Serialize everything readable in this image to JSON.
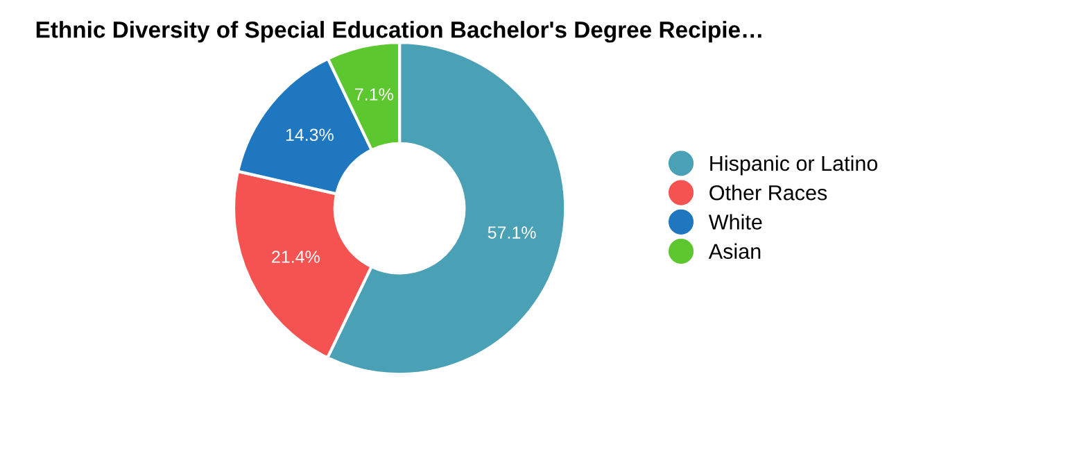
{
  "chart_data": {
    "type": "donut",
    "title": "Ethnic Diversity of Special Education Bachelor's Degree Recipie…",
    "categories": [
      "Hispanic or Latino",
      "Other Races",
      "White",
      "Asian"
    ],
    "values": [
      57.1,
      21.4,
      14.3,
      7.1
    ],
    "value_labels": [
      "57.1%",
      "21.4%",
      "14.3%",
      "7.1%"
    ],
    "colors": [
      "#4aa0b5",
      "#f55352",
      "#1f77c0",
      "#5cc72e"
    ],
    "legend": "right"
  }
}
